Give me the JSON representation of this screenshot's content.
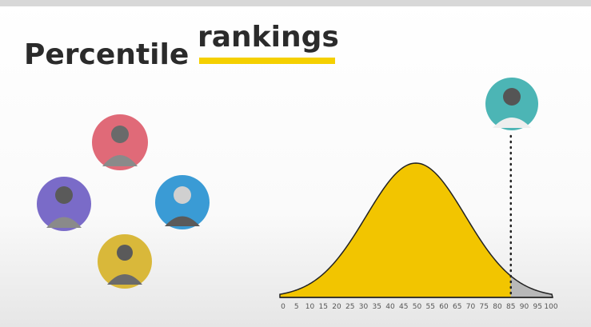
{
  "slide": {
    "title": {
      "first": "Percentile",
      "second": "rankings"
    },
    "distribution": {
      "xlim": [
        0,
        100
      ],
      "xticks": [
        0,
        5,
        10,
        15,
        20,
        25,
        30,
        35,
        40,
        45,
        50,
        55,
        60,
        65,
        70,
        75,
        80,
        85,
        90,
        95,
        100
      ],
      "marker": 85
    }
  }
}
